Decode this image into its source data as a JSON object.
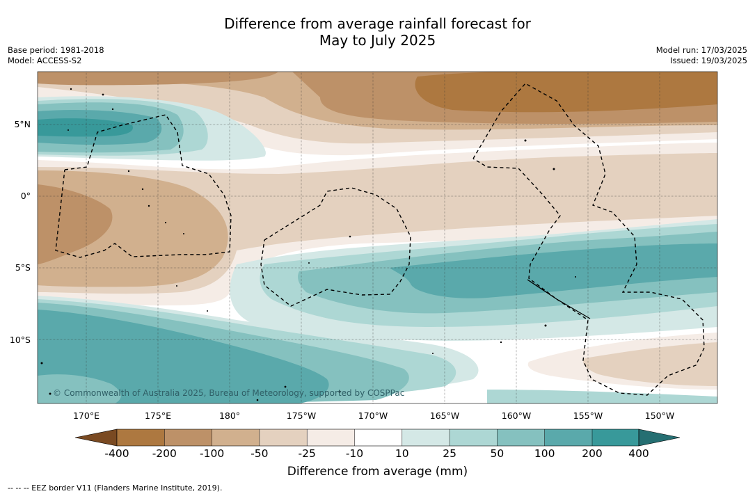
{
  "title_line1": "Difference from average rainfall forecast for",
  "title_line2": "May to July 2025",
  "base_period": "Base period: 1981-2018",
  "model": "Model: ACCESS-S2",
  "model_run": "Model run: 17/03/2025",
  "issued": "Issued: 19/03/2025",
  "latitude_labels": [
    "5°N",
    "0°",
    "5°S",
    "10°S"
  ],
  "longitude_labels": [
    "170°E",
    "175°E",
    "180°",
    "175°W",
    "170°W",
    "165°W",
    "160°W",
    "155°W",
    "150°W"
  ],
  "colorbar": {
    "label": "Difference from average (mm)",
    "ticks": [
      "-400",
      "-200",
      "-100",
      "-50",
      "-25",
      "-10",
      "10",
      "25",
      "50",
      "100",
      "200",
      "400"
    ],
    "colors": [
      "#7a4a22",
      "#ad7840",
      "#bd9168",
      "#d1b08e",
      "#e4d1bf",
      "#f5ece6",
      "#ffffff",
      "#d4e8e6",
      "#add7d4",
      "#85c1bf",
      "#5aa9ab",
      "#38999a",
      "#256f72"
    ]
  },
  "copyright": "© Commonwealth of Australia 2025, Bureau of Meteorology, supported by COSPPac",
  "footer": "-- -- -- EEZ border V11 (Flanders Marine Institute, 2019)."
}
